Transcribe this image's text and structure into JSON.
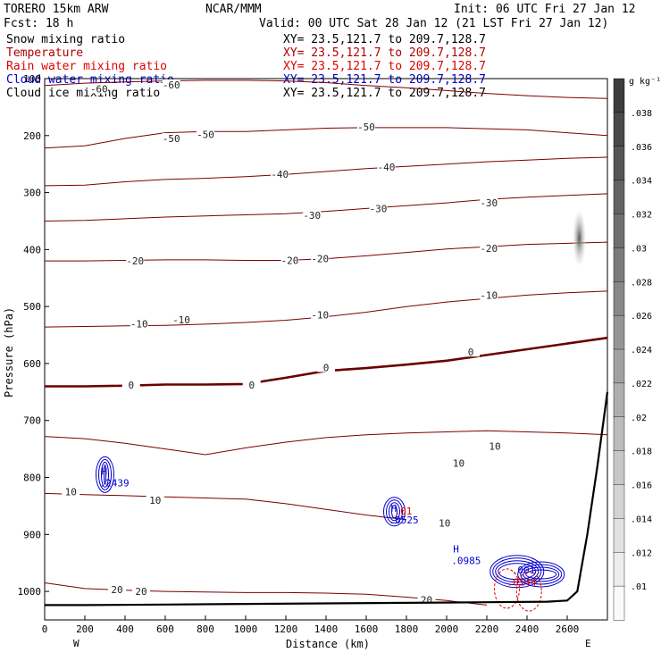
{
  "header": {
    "model": "TORERO  15km ARW",
    "org": "NCAR/MMM",
    "init": "Init: 06 UTC Fri 27 Jan 12",
    "fcst": "Fcst:   18 h",
    "valid": "Valid: 00 UTC Sat 28 Jan 12 (21 LST Fri 27 Jan 12)"
  },
  "fields": [
    {
      "name": "Snow mixing ratio",
      "xy": "XY=  23.5,121.7 to 209.7,128.7",
      "color": "#000000"
    },
    {
      "name": "Temperature",
      "xy": "XY=  23.5,121.7 to 209.7,128.7",
      "color": "#b00000"
    },
    {
      "name": "Rain water mixing ratio",
      "xy": "XY=  23.5,121.7 to 209.7,128.7",
      "color": "#e00000"
    },
    {
      "name": "Cloud water mixing ratio",
      "xy": "XY=  23.5,121.7 to 209.7,128.7",
      "color": "#0000cc"
    },
    {
      "name": "Cloud ice mixing ratio",
      "xy": "XY=  23.5,121.7 to 209.7,128.7",
      "color": "#000000"
    }
  ],
  "colors": {
    "temperature": "#7a0000",
    "freezing_line": "#6a0000",
    "cloud_water": "#0000cc",
    "rain_water": "#e00000",
    "terrain": "#000000"
  },
  "chart_data": {
    "type": "line",
    "title": "",
    "xlabel": "Distance (km)",
    "ylabel": "Pressure (hPa)",
    "xlim": [
      0,
      2800
    ],
    "ylim": [
      1050,
      100
    ],
    "x_ticks": [
      0,
      200,
      400,
      600,
      800,
      1000,
      1200,
      1400,
      1600,
      1800,
      2000,
      2200,
      2400,
      2600
    ],
    "y_ticks": [
      100,
      200,
      300,
      400,
      500,
      600,
      700,
      800,
      900,
      1000
    ],
    "x_end_labels": {
      "left": "W",
      "right": "E"
    },
    "temperature_isotherms": [
      {
        "value": -60,
        "x": [
          0,
          200,
          400,
          600,
          800,
          1000,
          1200,
          1400,
          1600,
          1800,
          2000,
          2200,
          2400,
          2600,
          2800
        ],
        "y": [
          112,
          108,
          106,
          104,
          103,
          103,
          104,
          107,
          112,
          116,
          121,
          126,
          130,
          133,
          135
        ]
      },
      {
        "value": -50,
        "x": [
          0,
          200,
          400,
          600,
          800,
          1000,
          1200,
          1400,
          1600,
          1800,
          2000,
          2200,
          2400,
          2600,
          2800
        ],
        "y": [
          222,
          218,
          205,
          195,
          193,
          193,
          190,
          187,
          186,
          186,
          186,
          188,
          190,
          195,
          200
        ]
      },
      {
        "value": -40,
        "x": [
          0,
          200,
          400,
          600,
          800,
          1000,
          1200,
          1400,
          1600,
          1800,
          2000,
          2200,
          2400,
          2600,
          2800
        ],
        "y": [
          288,
          287,
          281,
          277,
          275,
          272,
          268,
          263,
          258,
          254,
          250,
          246,
          243,
          240,
          238
        ]
      },
      {
        "value": -30,
        "x": [
          0,
          200,
          400,
          600,
          800,
          1000,
          1200,
          1400,
          1600,
          1800,
          2000,
          2200,
          2400,
          2600,
          2800
        ],
        "y": [
          350,
          349,
          346,
          343,
          341,
          339,
          337,
          333,
          328,
          323,
          318,
          312,
          308,
          305,
          302
        ]
      },
      {
        "value": -20,
        "x": [
          0,
          200,
          400,
          600,
          800,
          1000,
          1200,
          1400,
          1600,
          1800,
          2000,
          2200,
          2400,
          2600,
          2800
        ],
        "y": [
          420,
          420,
          419,
          418,
          418,
          419,
          419,
          416,
          411,
          405,
          399,
          395,
          391,
          389,
          387
        ]
      },
      {
        "value": -10,
        "x": [
          0,
          200,
          400,
          600,
          800,
          1000,
          1200,
          1400,
          1600,
          1800,
          2000,
          2200,
          2400,
          2600,
          2800
        ],
        "y": [
          536,
          535,
          534,
          533,
          531,
          528,
          524,
          518,
          510,
          500,
          492,
          486,
          480,
          476,
          473
        ]
      },
      {
        "value": 0,
        "x": [
          0,
          200,
          400,
          600,
          800,
          1000,
          1200,
          1400,
          1600,
          1800,
          2000,
          2200,
          2400,
          2600,
          2800
        ],
        "y": [
          640,
          640,
          639,
          637,
          637,
          636,
          625,
          613,
          608,
          602,
          595,
          585,
          575,
          565,
          555
        ]
      },
      {
        "value": 10,
        "x": [
          0,
          200,
          400,
          600,
          800,
          1000,
          1200,
          1400,
          1600,
          1800,
          2000,
          2200,
          2400,
          2600,
          2800
        ],
        "y": [
          728,
          732,
          740,
          750,
          760,
          748,
          738,
          730,
          725,
          722,
          720,
          718,
          720,
          722,
          725
        ]
      },
      {
        "value": 10,
        "x": [
          0,
          200,
          400,
          600,
          800,
          1000,
          1200,
          1400,
          1600,
          1800
        ],
        "y": [
          828,
          830,
          832,
          834,
          836,
          838,
          846,
          856,
          866,
          874
        ]
      },
      {
        "value": 20,
        "x": [
          0,
          200,
          400,
          600,
          800,
          1000,
          1200,
          1400,
          1600,
          1800,
          2000,
          2200
        ],
        "y": [
          985,
          995,
          998,
          1000,
          1001,
          1002,
          1002,
          1003,
          1005,
          1010,
          1016,
          1024
        ]
      }
    ],
    "contour_labels": [
      {
        "text": "-60",
        "x": 270,
        "y": 118
      },
      {
        "text": "-60",
        "x": 630,
        "y": 111
      },
      {
        "text": "-50",
        "x": 630,
        "y": 205
      },
      {
        "text": "-50",
        "x": 800,
        "y": 198
      },
      {
        "text": "-50",
        "x": 1600,
        "y": 185
      },
      {
        "text": "-40",
        "x": 1170,
        "y": 268
      },
      {
        "text": "-40",
        "x": 1700,
        "y": 255
      },
      {
        "text": "-30",
        "x": 1330,
        "y": 340
      },
      {
        "text": "-30",
        "x": 1660,
        "y": 328
      },
      {
        "text": "-30",
        "x": 2210,
        "y": 318
      },
      {
        "text": "-20",
        "x": 450,
        "y": 420
      },
      {
        "text": "-20",
        "x": 1220,
        "y": 419
      },
      {
        "text": "-20",
        "x": 1370,
        "y": 416
      },
      {
        "text": "-20",
        "x": 2210,
        "y": 398
      },
      {
        "text": "-10",
        "x": 470,
        "y": 530
      },
      {
        "text": "-10",
        "x": 680,
        "y": 523
      },
      {
        "text": "-10",
        "x": 1370,
        "y": 515
      },
      {
        "text": "-10",
        "x": 2210,
        "y": 480
      },
      {
        "text": "0",
        "x": 430,
        "y": 638
      },
      {
        "text": "0",
        "x": 1030,
        "y": 638
      },
      {
        "text": "0",
        "x": 1400,
        "y": 607
      },
      {
        "text": "0",
        "x": 2120,
        "y": 580
      },
      {
        "text": "10",
        "x": 130,
        "y": 825
      },
      {
        "text": "10",
        "x": 550,
        "y": 840
      },
      {
        "text": "10",
        "x": 2060,
        "y": 775
      },
      {
        "text": "10",
        "x": 2240,
        "y": 745
      },
      {
        "text": "10",
        "x": 1990,
        "y": 880
      },
      {
        "text": "20",
        "x": 360,
        "y": 997
      },
      {
        "text": "20",
        "x": 480,
        "y": 1000
      },
      {
        "text": "20",
        "x": 1900,
        "y": 1015
      }
    ],
    "cloud_water_maxima": [
      {
        "label": "H",
        "value": ".2439",
        "x": 300,
        "y": 795
      },
      {
        "label": "H",
        "value": ".0525",
        "x": 1740,
        "y": 860
      },
      {
        "label": "H",
        "value": ".0985",
        "x": 2050,
        "y": 932
      },
      {
        "label": "",
        "value": ".001",
        "x": 2350,
        "y": 948
      }
    ],
    "rain_water_labels": [
      {
        "value": ".0144",
        "x": 2300,
        "y": 990
      },
      {
        "value": ".01",
        "x": 1740,
        "y": 865
      }
    ],
    "cloud_ice_region": {
      "x": 2660,
      "y": 380
    },
    "colorbar": {
      "unit": "g kg⁻¹",
      "ticks": [
        ".038",
        ".036",
        ".034",
        ".032",
        ".03",
        ".028",
        ".026",
        ".024",
        ".022",
        ".02",
        ".018",
        ".016",
        ".014",
        ".012",
        ".01"
      ]
    },
    "terrain": {
      "x": [
        0,
        200,
        600,
        1000,
        1400,
        1800,
        2200,
        2500,
        2600,
        2650,
        2700,
        2750,
        2800
      ],
      "y": [
        1024,
        1024,
        1023,
        1022,
        1021,
        1020,
        1019,
        1018,
        1016,
        1000,
        900,
        780,
        650
      ]
    }
  }
}
